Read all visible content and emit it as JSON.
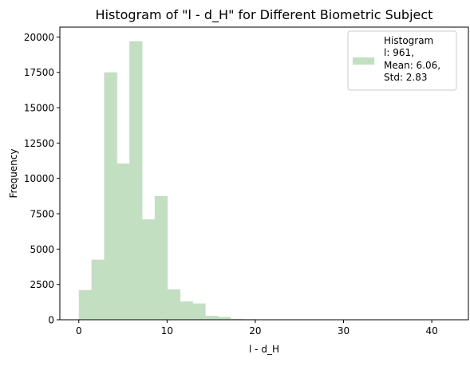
{
  "chart_data": {
    "type": "bar",
    "title": "Histogram of \"l - d_H\" for Different Biometric Subject",
    "xlabel": "l - d_H",
    "ylabel": "Frequency",
    "xlim": [
      -2.15,
      44.15
    ],
    "ylim": [
      0,
      20700
    ],
    "xticks": [
      0,
      10,
      20,
      30,
      40
    ],
    "yticks": [
      0,
      2500,
      5000,
      7500,
      10000,
      12500,
      15000,
      17500,
      20000
    ],
    "bin_width": 1.4333,
    "bins": [
      {
        "x0": 0.0,
        "value": 2100
      },
      {
        "x0": 1.4333,
        "value": 4250
      },
      {
        "x0": 2.8667,
        "value": 17500
      },
      {
        "x0": 4.3,
        "value": 11050
      },
      {
        "x0": 5.7333,
        "value": 19700
      },
      {
        "x0": 7.1667,
        "value": 7100
      },
      {
        "x0": 8.6,
        "value": 8750
      },
      {
        "x0": 10.0333,
        "value": 2150
      },
      {
        "x0": 11.4667,
        "value": 1300
      },
      {
        "x0": 12.9,
        "value": 1150
      },
      {
        "x0": 14.3333,
        "value": 280
      },
      {
        "x0": 15.7667,
        "value": 200
      },
      {
        "x0": 17.2,
        "value": 70
      },
      {
        "x0": 18.6333,
        "value": 40
      },
      {
        "x0": 20.0667,
        "value": 30
      },
      {
        "x0": 21.5,
        "value": 10
      },
      {
        "x0": 22.9333,
        "value": 5
      },
      {
        "x0": 24.3667,
        "value": 5
      },
      {
        "x0": 25.8,
        "value": 3
      },
      {
        "x0": 27.2333,
        "value": 3
      },
      {
        "x0": 28.6667,
        "value": 2
      },
      {
        "x0": 30.1,
        "value": 2
      },
      {
        "x0": 31.5333,
        "value": 2
      },
      {
        "x0": 32.9667,
        "value": 1
      },
      {
        "x0": 34.4,
        "value": 1
      },
      {
        "x0": 35.8333,
        "value": 1
      },
      {
        "x0": 37.2667,
        "value": 1
      },
      {
        "x0": 38.7,
        "value": 1
      },
      {
        "x0": 40.1333,
        "value": 1
      },
      {
        "x0": 41.5667,
        "value": 1
      }
    ],
    "series": [
      {
        "name": "Histogram",
        "color": "#c2dfc2"
      }
    ],
    "legend": {
      "placement": "top-right",
      "lines": [
        "Histogram",
        "l: 961,",
        "Mean: 6.06,",
        "Std: 2.83"
      ]
    },
    "grid": false
  }
}
